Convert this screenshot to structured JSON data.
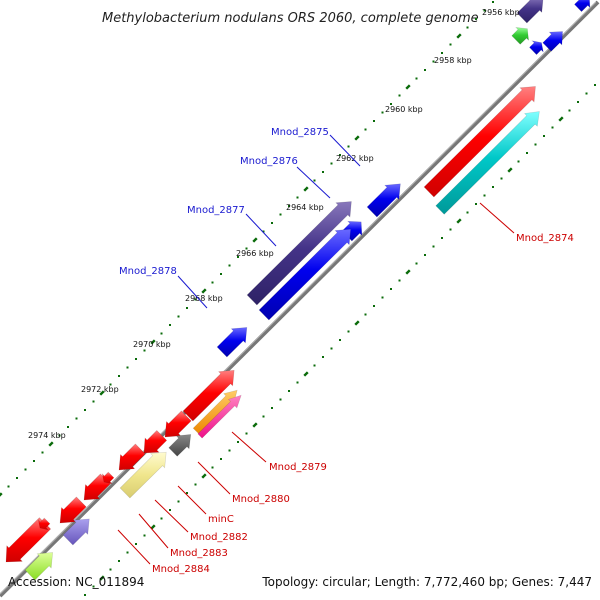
{
  "title": "Methylobacterium nodulans ORS 2060, complete genome",
  "footer": {
    "accession": "Accession: NC_011894",
    "topology": "Topology: circular; Length: 7,772,460 bp; Genes: 7,447"
  },
  "ticks": [
    "2956 kbp",
    "2958 kbp",
    "2960 kbp",
    "2962 kbp",
    "2964 kbp",
    "2966 kbp",
    "2968 kbp",
    "2970 kbp",
    "2972 kbp",
    "2974 kbp"
  ],
  "labels": {
    "mnod_2875": "Mnod_2875",
    "mnod_2876": "Mnod_2876",
    "mnod_2877": "Mnod_2877",
    "mnod_2878": "Mnod_2878",
    "mnod_2874": "Mnod_2874",
    "mnod_2879": "Mnod_2879",
    "mnod_2880": "Mnod_2880",
    "minc": "minC",
    "mnod_2882": "Mnod_2882",
    "mnod_2883": "Mnod_2883",
    "mnod_2884": "Mnod_2884"
  },
  "colors": {
    "backbone": "#7a7a7a",
    "cds_red": "#ff0000",
    "cds_blue": "#0000ee",
    "cds_darkblue": "#443388",
    "cds_cyan": "#00c8c8",
    "cds_green": "#33cc33",
    "cds_yellow": "#f0e68c",
    "cds_orange": "#ff9900",
    "cds_magenta": "#ff1493",
    "cds_gray": "#555555",
    "cds_lavender": "#7766cc",
    "cds_lime": "#99ee33",
    "tick_mark": "#006600",
    "label_blue": "#1a1ad0",
    "label_red": "#cc0000"
  }
}
